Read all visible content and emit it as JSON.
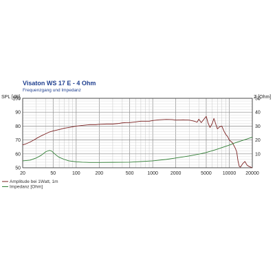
{
  "chart_data": {
    "type": "line",
    "title": "Visaton WS 17 E - 4 Ohm",
    "subtitle": "Frequenzgang und Impedanz",
    "ylabel_left": "SPL [dB]",
    "ylabel_right": "Z [Ohm]",
    "x_scale": "log",
    "xlim": [
      20,
      20000
    ],
    "ylim_left": [
      50,
      100
    ],
    "ylim_right": [
      0,
      50
    ],
    "x_ticks": [
      20,
      50,
      100,
      200,
      500,
      1000,
      2000,
      5000,
      10000,
      20000
    ],
    "x_tick_labels": [
      "20",
      "50",
      "100",
      "200",
      "500",
      "1000",
      "2000",
      "5000",
      "10000",
      "20000"
    ],
    "y_ticks_left": [
      "50",
      "60",
      "70",
      "80",
      "90",
      "100"
    ],
    "y_ticks_right": [
      "10",
      "20",
      "30",
      "40",
      "50"
    ],
    "grid": true,
    "legend_position": "bottom-left",
    "series": [
      {
        "name": "Amplitude bei 1Watt, 1m",
        "color": "#7a1f1f",
        "axis": "left",
        "x": [
          20,
          22,
          25,
          28,
          30,
          35,
          40,
          45,
          50,
          60,
          70,
          80,
          90,
          100,
          120,
          150,
          180,
          200,
          250,
          300,
          350,
          400,
          450,
          500,
          600,
          700,
          800,
          900,
          1000,
          1200,
          1500,
          1800,
          2000,
          2500,
          3000,
          3500,
          3800,
          4000,
          4300,
          4600,
          5000,
          5300,
          5600,
          6000,
          6300,
          6700,
          7000,
          7500,
          8000,
          8500,
          9000,
          9500,
          10000,
          11000,
          12000,
          12500,
          13000,
          13500,
          14000,
          15000,
          16000,
          17000,
          18000,
          20000
        ],
        "values": [
          66.5,
          67.2,
          68.5,
          70,
          71,
          73,
          74.5,
          75.8,
          76.5,
          77.5,
          78.5,
          79,
          79.5,
          80,
          80.5,
          81,
          81,
          81.3,
          81.5,
          81.5,
          81.8,
          82.3,
          82.5,
          82.5,
          83,
          83.5,
          83.5,
          83.5,
          84,
          84.5,
          84.8,
          84.7,
          84.3,
          84.5,
          84.3,
          83.5,
          82.8,
          85,
          82.5,
          84.5,
          87,
          82,
          79,
          82,
          85.5,
          81,
          78,
          79.5,
          80,
          76.5,
          74,
          72.5,
          70,
          68,
          64,
          61.5,
          55,
          51,
          50.5,
          53,
          54.5,
          52,
          51,
          50
        ]
      },
      {
        "name": "Impedanz [Ohm]",
        "color": "#2e7d32",
        "axis": "right",
        "x": [
          20,
          25,
          30,
          35,
          40,
          42,
          45,
          48,
          50,
          55,
          60,
          70,
          80,
          100,
          120,
          150,
          200,
          300,
          500,
          700,
          1000,
          1500,
          2000,
          3000,
          4000,
          5000,
          6000,
          7000,
          8000,
          10000,
          12000,
          15000,
          20000
        ],
        "values": [
          5,
          5.5,
          7,
          9,
          11.5,
          12,
          12.5,
          12,
          11,
          9,
          7.5,
          6,
          5,
          4.3,
          4,
          3.8,
          3.8,
          3.9,
          4,
          4.5,
          5,
          6,
          7,
          8.5,
          9.8,
          11,
          12.3,
          13.4,
          14.5,
          16.3,
          18,
          19.7,
          22
        ]
      }
    ]
  }
}
